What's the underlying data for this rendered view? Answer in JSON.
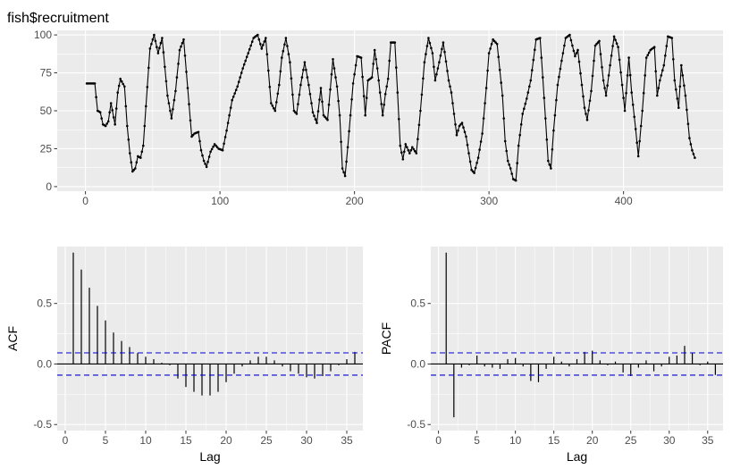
{
  "colors": {
    "panel_bg": "#ebebeb",
    "grid": "#ffffff",
    "line": "#000000",
    "ci": "#0000cc",
    "text": "#4d4d4d"
  },
  "chart_data": [
    {
      "type": "line",
      "title": "fish$recruitment",
      "xlabel": "",
      "ylabel": "",
      "xlim": [
        -21,
        474
      ],
      "ylim": [
        -3,
        103
      ],
      "x_ticks": [
        0,
        100,
        200,
        300,
        400
      ],
      "y_ticks": [
        0,
        25,
        50,
        75,
        100
      ],
      "grid": true,
      "series": [
        {
          "knots": [
            [
              1,
              68
            ],
            [
              7,
              68
            ],
            [
              9,
              50
            ],
            [
              11,
              49
            ],
            [
              13,
              41
            ],
            [
              15,
              40
            ],
            [
              17,
              43
            ],
            [
              19,
              55
            ],
            [
              22,
              41
            ],
            [
              24,
              62
            ],
            [
              26,
              71
            ],
            [
              29,
              66
            ],
            [
              31,
              40
            ],
            [
              33,
              22
            ],
            [
              35,
              10
            ],
            [
              37,
              12
            ],
            [
              39,
              20
            ],
            [
              41,
              19
            ],
            [
              43,
              27
            ],
            [
              45,
              53
            ],
            [
              48,
              91
            ],
            [
              51,
              100
            ],
            [
              54,
              88
            ],
            [
              57,
              98
            ],
            [
              61,
              60
            ],
            [
              64,
              45
            ],
            [
              67,
              63
            ],
            [
              70,
              90
            ],
            [
              73,
              97
            ],
            [
              76,
              65
            ],
            [
              79,
              33
            ],
            [
              81,
              35
            ],
            [
              84,
              36
            ],
            [
              86,
              24
            ],
            [
              88,
              17
            ],
            [
              90,
              13
            ],
            [
              93,
              23
            ],
            [
              96,
              28
            ],
            [
              99,
              25
            ],
            [
              102,
              24
            ],
            [
              105,
              37
            ],
            [
              109,
              57
            ],
            [
              113,
              66
            ],
            [
              117,
              78
            ],
            [
              121,
              88
            ],
            [
              125,
              98
            ],
            [
              128,
              100
            ],
            [
              131,
              91
            ],
            [
              134,
              98
            ],
            [
              138,
              55
            ],
            [
              141,
              50
            ],
            [
              144,
              67
            ],
            [
              146,
              85
            ],
            [
              149,
              98
            ],
            [
              152,
              82
            ],
            [
              155,
              50
            ],
            [
              157,
              48
            ],
            [
              160,
              67
            ],
            [
              163,
              82
            ],
            [
              166,
              67
            ],
            [
              169,
              49
            ],
            [
              172,
              42
            ],
            [
              175,
              65
            ],
            [
              177,
              47
            ],
            [
              180,
              44
            ],
            [
              184,
              84
            ],
            [
              187,
              66
            ],
            [
              189,
              47
            ],
            [
              191,
              12
            ],
            [
              193,
              7
            ],
            [
              195,
              26
            ],
            [
              197,
              47
            ],
            [
              199,
              68
            ],
            [
              202,
              86
            ],
            [
              205,
              85
            ],
            [
              208,
              47
            ],
            [
              210,
              70
            ],
            [
              213,
              72
            ],
            [
              215,
              90
            ],
            [
              217,
              78
            ],
            [
              219,
              62
            ],
            [
              221,
              47
            ],
            [
              223,
              61
            ],
            [
              225,
              71
            ],
            [
              227,
              95
            ],
            [
              230,
              95
            ],
            [
              232,
              62
            ],
            [
              234,
              27
            ],
            [
              236,
              18
            ],
            [
              238,
              28
            ],
            [
              241,
              22
            ],
            [
              243,
              26
            ],
            [
              246,
              22
            ],
            [
              249,
              50
            ],
            [
              252,
              82
            ],
            [
              255,
              98
            ],
            [
              258,
              88
            ],
            [
              260,
              70
            ],
            [
              263,
              82
            ],
            [
              266,
              95
            ],
            [
              270,
              70
            ],
            [
              272,
              62
            ],
            [
              274,
              48
            ],
            [
              276,
              34
            ],
            [
              278,
              40
            ],
            [
              280,
              42
            ],
            [
              283,
              33
            ],
            [
              285,
              22
            ],
            [
              287,
              11
            ],
            [
              289,
              9
            ],
            [
              292,
              19
            ],
            [
              295,
              35
            ],
            [
              298,
              65
            ],
            [
              300,
              88
            ],
            [
              303,
              97
            ],
            [
              306,
              94
            ],
            [
              310,
              60
            ],
            [
              312,
              30
            ],
            [
              314,
              17
            ],
            [
              316,
              12
            ],
            [
              318,
              5
            ],
            [
              320,
              4
            ],
            [
              322,
              27
            ],
            [
              325,
              48
            ],
            [
              328,
              58
            ],
            [
              331,
              70
            ],
            [
              335,
              97
            ],
            [
              338,
              98
            ],
            [
              340,
              72
            ],
            [
              342,
              45
            ],
            [
              344,
              17
            ],
            [
              346,
              12
            ],
            [
              348,
              37
            ],
            [
              351,
              67
            ],
            [
              354,
              83
            ],
            [
              357,
              98
            ],
            [
              360,
              100
            ],
            [
              364,
              86
            ],
            [
              366,
              90
            ],
            [
              369,
              67
            ],
            [
              371,
              52
            ],
            [
              373,
              44
            ],
            [
              376,
              63
            ],
            [
              379,
              93
            ],
            [
              382,
              96
            ],
            [
              385,
              70
            ],
            [
              387,
              60
            ],
            [
              390,
              80
            ],
            [
              393,
              99
            ],
            [
              396,
              92
            ],
            [
              399,
              67
            ],
            [
              401,
              50
            ],
            [
              404,
              85
            ],
            [
              406,
              62
            ],
            [
              409,
              38
            ],
            [
              411,
              20
            ],
            [
              414,
              50
            ],
            [
              417,
              85
            ],
            [
              420,
              90
            ],
            [
              423,
              92
            ],
            [
              425,
              60
            ],
            [
              427,
              70
            ],
            [
              430,
              80
            ],
            [
              433,
              99
            ],
            [
              436,
              98
            ],
            [
              438,
              70
            ],
            [
              441,
              52
            ],
            [
              443,
              80
            ],
            [
              446,
              60
            ],
            [
              449,
              32
            ],
            [
              451,
              24
            ],
            [
              453,
              19
            ]
          ]
        }
      ]
    },
    {
      "type": "bar",
      "xlabel": "Lag",
      "ylabel": "ACF",
      "xlim": [
        -1,
        37
      ],
      "ylim": [
        -0.55,
        0.97
      ],
      "x_ticks": [
        0,
        5,
        10,
        15,
        20,
        25,
        30,
        35
      ],
      "y_ticks": [
        -0.5,
        0.0,
        0.5
      ],
      "y_tick_labels": [
        "-0.5",
        "0.0",
        "0.5"
      ],
      "ci": 0.092,
      "lags": [
        1,
        2,
        3,
        4,
        5,
        6,
        7,
        8,
        9,
        10,
        11,
        12,
        13,
        14,
        15,
        16,
        17,
        18,
        19,
        20,
        21,
        22,
        23,
        24,
        25,
        26,
        27,
        28,
        29,
        30,
        31,
        32,
        33,
        34,
        35,
        36
      ],
      "values": [
        0.92,
        0.78,
        0.63,
        0.48,
        0.36,
        0.26,
        0.19,
        0.14,
        0.09,
        0.06,
        0.04,
        0.01,
        -0.01,
        -0.12,
        -0.19,
        -0.23,
        -0.26,
        -0.26,
        -0.23,
        -0.15,
        -0.08,
        -0.02,
        0.03,
        0.06,
        0.06,
        0.03,
        -0.02,
        -0.06,
        -0.08,
        -0.11,
        -0.12,
        -0.1,
        -0.06,
        -0.01,
        0.04,
        0.1
      ],
      "grid": true
    },
    {
      "type": "bar",
      "xlabel": "Lag",
      "ylabel": "PACF",
      "xlim": [
        -1,
        37
      ],
      "ylim": [
        -0.55,
        0.97
      ],
      "x_ticks": [
        0,
        5,
        10,
        15,
        20,
        25,
        30,
        35
      ],
      "y_ticks": [
        -0.5,
        0.0,
        0.5
      ],
      "y_tick_labels": [
        "-0.5",
        "0.0",
        "0.5"
      ],
      "ci": 0.092,
      "lags": [
        1,
        2,
        3,
        4,
        5,
        6,
        7,
        8,
        9,
        10,
        11,
        12,
        13,
        14,
        15,
        16,
        17,
        18,
        19,
        20,
        21,
        22,
        23,
        24,
        25,
        26,
        27,
        28,
        29,
        30,
        31,
        32,
        33,
        34,
        35,
        36
      ],
      "values": [
        0.92,
        -0.44,
        -0.03,
        -0.01,
        0.07,
        -0.02,
        -0.03,
        -0.04,
        0.04,
        0.05,
        -0.02,
        -0.14,
        -0.15,
        -0.04,
        0.06,
        0.02,
        -0.02,
        0.04,
        0.1,
        0.11,
        0.03,
        -0.01,
        0.02,
        -0.07,
        -0.1,
        -0.03,
        0.03,
        -0.06,
        -0.02,
        0.06,
        0.07,
        0.15,
        0.09,
        -0.01,
        0.02,
        -0.09
      ],
      "grid": true
    }
  ]
}
